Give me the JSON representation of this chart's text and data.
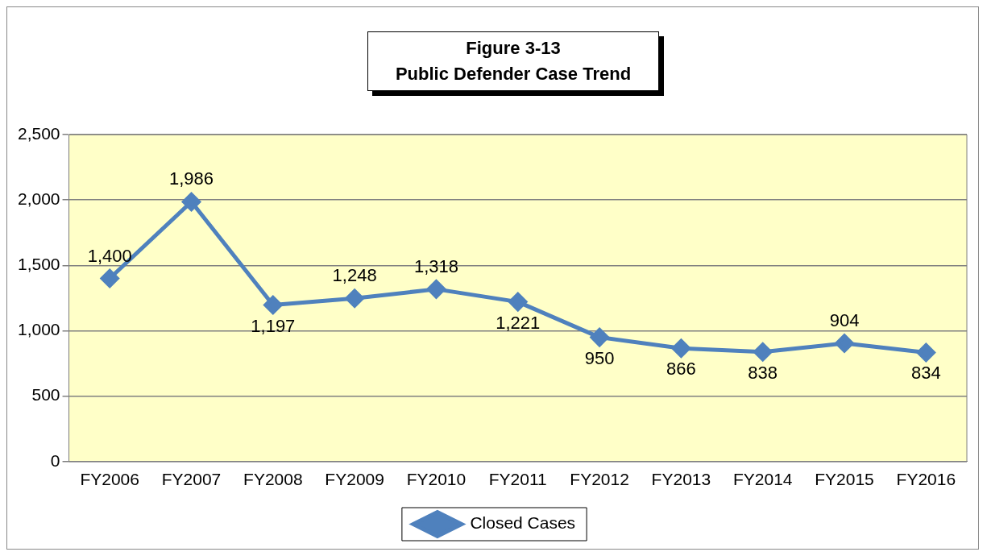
{
  "chart_data": {
    "type": "line",
    "title": "Figure 3-13",
    "subtitle": "Public Defender Case Trend",
    "categories": [
      "FY2006",
      "FY2007",
      "FY2008",
      "FY2009",
      "FY2010",
      "FY2011",
      "FY2012",
      "FY2013",
      "FY2014",
      "FY2015",
      "FY2016"
    ],
    "series": [
      {
        "name": "Closed Cases",
        "color": "#4f81bd",
        "values": [
          1400,
          1986,
          1197,
          1248,
          1318,
          1221,
          950,
          866,
          838,
          904,
          834
        ],
        "value_labels": [
          "1,400",
          "1,986",
          "1,197",
          "1,248",
          "1,318",
          "1,221",
          "950",
          "866",
          "838",
          "904",
          "834"
        ]
      }
    ],
    "ylim": [
      0,
      2500
    ],
    "yticks": [
      {
        "value": 0,
        "label": "0"
      },
      {
        "value": 500,
        "label": "500"
      },
      {
        "value": 1000,
        "label": "1,000"
      },
      {
        "value": 1500,
        "label": "1,500"
      },
      {
        "value": 2000,
        "label": "2,000"
      },
      {
        "value": 2500,
        "label": "2,500"
      }
    ],
    "grid": "y",
    "legend": "bottom",
    "marker": "diamond",
    "line_style": "solid"
  }
}
